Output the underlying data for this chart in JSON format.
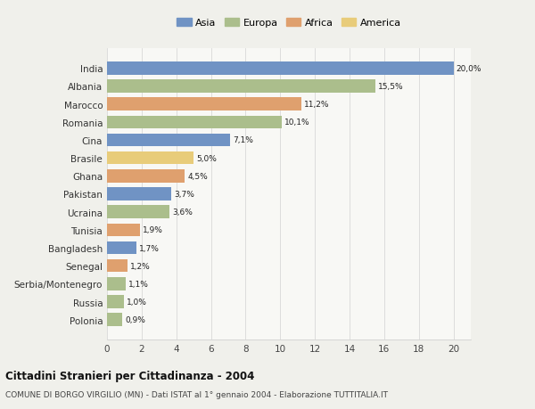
{
  "countries": [
    "India",
    "Albania",
    "Marocco",
    "Romania",
    "Cina",
    "Brasile",
    "Ghana",
    "Pakistan",
    "Ucraina",
    "Tunisia",
    "Bangladesh",
    "Senegal",
    "Serbia/Montenegro",
    "Russia",
    "Polonia"
  ],
  "values": [
    20.0,
    15.5,
    11.2,
    10.1,
    7.1,
    5.0,
    4.5,
    3.7,
    3.6,
    1.9,
    1.7,
    1.2,
    1.1,
    1.0,
    0.9
  ],
  "labels": [
    "20,0%",
    "15,5%",
    "11,2%",
    "10,1%",
    "7,1%",
    "5,0%",
    "4,5%",
    "3,7%",
    "3,6%",
    "1,9%",
    "1,7%",
    "1,2%",
    "1,1%",
    "1,0%",
    "0,9%"
  ],
  "colors": [
    "#7093c4",
    "#abbe8c",
    "#dfa06e",
    "#abbe8c",
    "#7093c4",
    "#e8cc7a",
    "#dfa06e",
    "#7093c4",
    "#abbe8c",
    "#dfa06e",
    "#7093c4",
    "#dfa06e",
    "#abbe8c",
    "#abbe8c",
    "#abbe8c"
  ],
  "legend_labels": [
    "Asia",
    "Europa",
    "Africa",
    "America"
  ],
  "legend_colors": [
    "#7093c4",
    "#abbe8c",
    "#dfa06e",
    "#e8cc7a"
  ],
  "xlim": [
    0,
    21
  ],
  "xticks": [
    0,
    2,
    4,
    6,
    8,
    10,
    12,
    14,
    16,
    18,
    20
  ],
  "title": "Cittadini Stranieri per Cittadinanza - 2004",
  "subtitle": "COMUNE DI BORGO VIRGILIO (MN) - Dati ISTAT al 1° gennaio 2004 - Elaborazione TUTTITALIA.IT",
  "background_color": "#f0f0eb",
  "bar_background": "#f8f8f5",
  "grid_color": "#d8d8d8"
}
